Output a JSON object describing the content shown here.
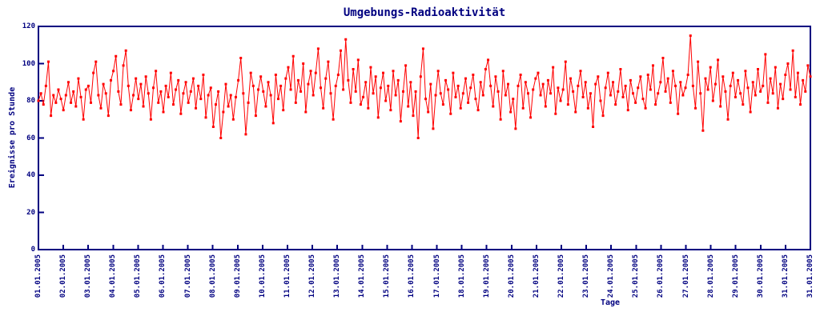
{
  "chart_data": {
    "type": "line",
    "title": "Umgebungs-Radioaktivität",
    "xlabel": "Tage",
    "ylabel": "Ereignisse pro Stunde",
    "ylim": [
      0,
      120
    ],
    "yticks": [
      0,
      20,
      40,
      60,
      80,
      100,
      120
    ],
    "xtick_labels": [
      "01.01.2005",
      "02.01.2005",
      "03.01.2005",
      "04.01.2005",
      "05.01.2005",
      "06.01.2005",
      "07.01.2005",
      "08.01.2005",
      "09.01.2005",
      "10.01.2005",
      "11.01.2005",
      "12.01.2005",
      "13.01.2005",
      "14.01.2005",
      "15.01.2005",
      "16.01.2005",
      "17.01.2005",
      "18.01.2005",
      "19.01.2005",
      "20.01.2005",
      "21.01.2005",
      "22.01.2005",
      "23.01.2005",
      "24.01.2005",
      "25.01.2005",
      "26.01.2005",
      "27.01.2005",
      "28.01.2005",
      "29.01.2005",
      "30.01.2005",
      "31.01.2005",
      "31.01.2005"
    ],
    "grid": false,
    "legend": "none",
    "colors": {
      "axis": "#000080",
      "text": "#000080",
      "series": "#ff0000",
      "background": "#ffffff"
    },
    "marker": "filled-square",
    "series": [
      {
        "name": "Umgebungs-Radioaktivität",
        "color": "#ff0000",
        "values": [
          80,
          84,
          78,
          88,
          101,
          72,
          83,
          79,
          86,
          81,
          75,
          83,
          90,
          79,
          85,
          77,
          92,
          82,
          70,
          86,
          88,
          79,
          95,
          101,
          83,
          76,
          89,
          84,
          72,
          91,
          96,
          104,
          85,
          78,
          99,
          107,
          88,
          75,
          83,
          92,
          81,
          89,
          77,
          93,
          84,
          70,
          87,
          96,
          79,
          85,
          74,
          88,
          82,
          95,
          78,
          86,
          91,
          73,
          84,
          90,
          79,
          85,
          92,
          76,
          88,
          81,
          94,
          71,
          83,
          87,
          66,
          78,
          85,
          60,
          74,
          89,
          77,
          83,
          70,
          82,
          91,
          103,
          84,
          62,
          79,
          95,
          88,
          72,
          86,
          93,
          85,
          77,
          90,
          83,
          68,
          94,
          81,
          88,
          75,
          92,
          98,
          86,
          104,
          79,
          91,
          85,
          100,
          74,
          89,
          96,
          83,
          95,
          108,
          87,
          76,
          92,
          101,
          84,
          70,
          88,
          94,
          107,
          86,
          113,
          91,
          79,
          97,
          85,
          102,
          78,
          82,
          90,
          76,
          98,
          84,
          93,
          71,
          87,
          95,
          80,
          88,
          75,
          96,
          83,
          91,
          69,
          85,
          99,
          77,
          90,
          72,
          85,
          60,
          93,
          108,
          81,
          74,
          89,
          65,
          83,
          96,
          84,
          78,
          91,
          86,
          73,
          95,
          82,
          88,
          76,
          84,
          92,
          79,
          87,
          94,
          81,
          75,
          90,
          83,
          97,
          102,
          88,
          77,
          93,
          85,
          70,
          96,
          83,
          89,
          74,
          81,
          65,
          88,
          94,
          76,
          90,
          84,
          71,
          86,
          92,
          95,
          83,
          89,
          77,
          91,
          84,
          98,
          73,
          87,
          80,
          86,
          101,
          78,
          92,
          85,
          74,
          88,
          96,
          82,
          90,
          76,
          84,
          66,
          89,
          93,
          80,
          72,
          87,
          95,
          83,
          90,
          78,
          85,
          97,
          82,
          88,
          75,
          91,
          84,
          79,
          87,
          93,
          81,
          76,
          94,
          86,
          99,
          78,
          84,
          90,
          103,
          85,
          92,
          79,
          96,
          88,
          73,
          90,
          83,
          87,
          94,
          115,
          88,
          76,
          101,
          84,
          64,
          92,
          86,
          98,
          80,
          89,
          102,
          77,
          93,
          85,
          70,
          88,
          95,
          82,
          91,
          84,
          78,
          96,
          87,
          74,
          90,
          83,
          97,
          85,
          88,
          105,
          79,
          92,
          84,
          98,
          76,
          89,
          81,
          94,
          100,
          86,
          107,
          82,
          95,
          78,
          91,
          85,
          99,
          93
        ]
      }
    ]
  }
}
